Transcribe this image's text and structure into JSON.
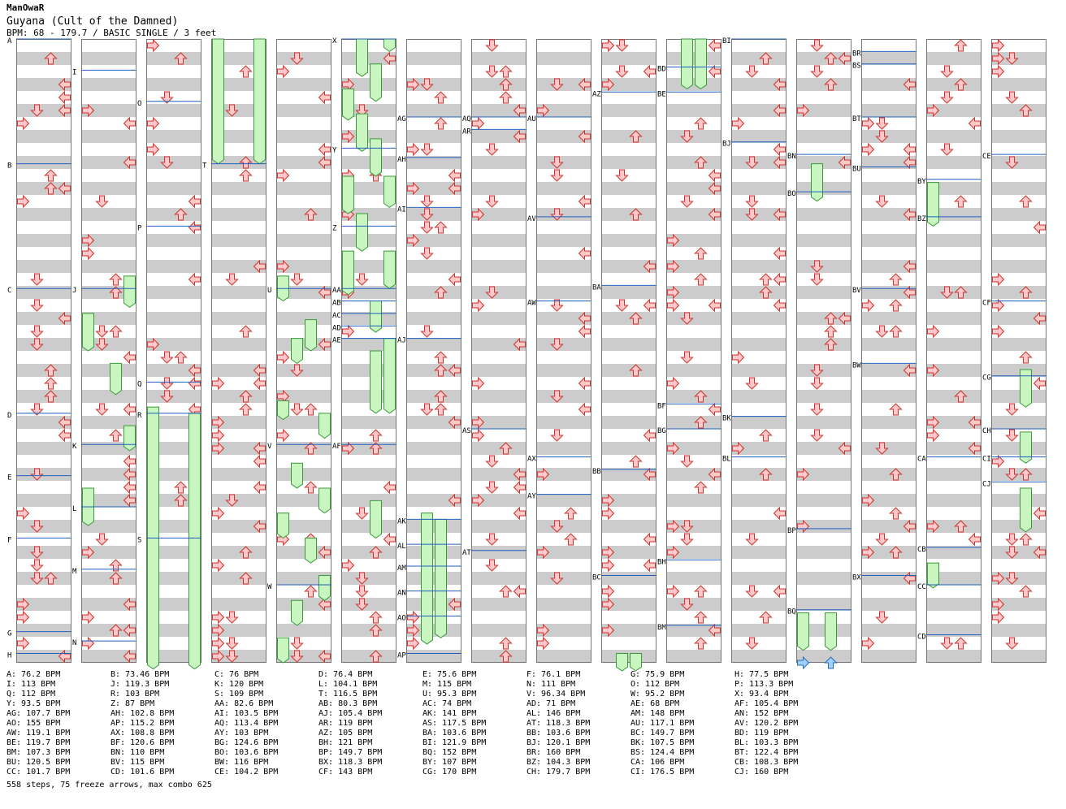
{
  "header": {
    "artist": "ManOwaR",
    "song": "Guyana (Cult of the Damned)",
    "meta": "BPM: 68 - 179.7 / BASIC SINGLE / 3 feet"
  },
  "colors": {
    "stripe": "#cccccc",
    "bpm_line": "#1f5fbf",
    "arrow_fill": "#ffc8c8",
    "arrow_stroke": "#cc3333",
    "freeze_fill": "#c8f5c0",
    "freeze_stroke": "#3a9a3a",
    "shock_fill": "#9ed0ff"
  },
  "markers": [
    {
      "id": "A",
      "col": 0,
      "t": 0.0
    },
    {
      "id": "B",
      "col": 0,
      "t": 0.2
    },
    {
      "id": "C",
      "col": 0,
      "t": 0.4
    },
    {
      "id": "D",
      "col": 0,
      "t": 0.6
    },
    {
      "id": "E",
      "col": 0,
      "t": 0.7
    },
    {
      "id": "F",
      "col": 0,
      "t": 0.8
    },
    {
      "id": "G",
      "col": 0,
      "t": 0.95
    },
    {
      "id": "H",
      "col": 0,
      "t": 0.985
    },
    {
      "id": "I",
      "col": 1,
      "t": 0.05
    },
    {
      "id": "J",
      "col": 1,
      "t": 0.4
    },
    {
      "id": "K",
      "col": 1,
      "t": 0.65
    },
    {
      "id": "L",
      "col": 1,
      "t": 0.75
    },
    {
      "id": "M",
      "col": 1,
      "t": 0.85
    },
    {
      "id": "N",
      "col": 1,
      "t": 0.965
    },
    {
      "id": "O",
      "col": 2,
      "t": 0.1
    },
    {
      "id": "P",
      "col": 2,
      "t": 0.3
    },
    {
      "id": "Q",
      "col": 2,
      "t": 0.55
    },
    {
      "id": "R",
      "col": 2,
      "t": 0.6
    },
    {
      "id": "S",
      "col": 2,
      "t": 0.8
    },
    {
      "id": "T",
      "col": 3,
      "t": 0.2
    },
    {
      "id": "U",
      "col": 4,
      "t": 0.4
    },
    {
      "id": "V",
      "col": 4,
      "t": 0.65
    },
    {
      "id": "W",
      "col": 4,
      "t": 0.875
    },
    {
      "id": "X",
      "col": 5,
      "t": 0.0
    },
    {
      "id": "Y",
      "col": 5,
      "t": 0.175
    },
    {
      "id": "Z",
      "col": 5,
      "t": 0.3
    },
    {
      "id": "AA",
      "col": 5,
      "t": 0.4
    },
    {
      "id": "AB",
      "col": 5,
      "t": 0.42
    },
    {
      "id": "AC",
      "col": 5,
      "t": 0.44
    },
    {
      "id": "AD",
      "col": 5,
      "t": 0.46
    },
    {
      "id": "AE",
      "col": 5,
      "t": 0.48
    },
    {
      "id": "AF",
      "col": 5,
      "t": 0.65
    },
    {
      "id": "AG",
      "col": 6,
      "t": 0.125
    },
    {
      "id": "AH",
      "col": 6,
      "t": 0.19
    },
    {
      "id": "AI",
      "col": 6,
      "t": 0.27
    },
    {
      "id": "AJ",
      "col": 6,
      "t": 0.48
    },
    {
      "id": "AK",
      "col": 6,
      "t": 0.77
    },
    {
      "id": "AL",
      "col": 6,
      "t": 0.81
    },
    {
      "id": "AM",
      "col": 6,
      "t": 0.845
    },
    {
      "id": "AN",
      "col": 6,
      "t": 0.885
    },
    {
      "id": "AO",
      "col": 6,
      "t": 0.925
    },
    {
      "id": "AP",
      "col": 6,
      "t": 0.985
    },
    {
      "id": "AQ",
      "col": 7,
      "t": 0.125
    },
    {
      "id": "AR",
      "col": 7,
      "t": 0.145
    },
    {
      "id": "AS",
      "col": 7,
      "t": 0.625
    },
    {
      "id": "AT",
      "col": 7,
      "t": 0.82
    },
    {
      "id": "AU",
      "col": 8,
      "t": 0.125
    },
    {
      "id": "AV",
      "col": 8,
      "t": 0.285
    },
    {
      "id": "AW",
      "col": 8,
      "t": 0.42
    },
    {
      "id": "AX",
      "col": 8,
      "t": 0.67
    },
    {
      "id": "AY",
      "col": 8,
      "t": 0.73
    },
    {
      "id": "AZ",
      "col": 9,
      "t": 0.085
    },
    {
      "id": "BA",
      "col": 9,
      "t": 0.395
    },
    {
      "id": "BB",
      "col": 9,
      "t": 0.69
    },
    {
      "id": "BC",
      "col": 9,
      "t": 0.86
    },
    {
      "id": "BD",
      "col": 10,
      "t": 0.045
    },
    {
      "id": "BE",
      "col": 10,
      "t": 0.085
    },
    {
      "id": "BF",
      "col": 10,
      "t": 0.585
    },
    {
      "id": "BG",
      "col": 10,
      "t": 0.625
    },
    {
      "id": "BH",
      "col": 10,
      "t": 0.835
    },
    {
      "id": "BM",
      "col": 10,
      "t": 0.94
    },
    {
      "id": "BI",
      "col": 11,
      "t": 0.0
    },
    {
      "id": "BJ",
      "col": 11,
      "t": 0.165
    },
    {
      "id": "BK",
      "col": 11,
      "t": 0.605
    },
    {
      "id": "BL",
      "col": 11,
      "t": 0.67
    },
    {
      "id": "BN",
      "col": 12,
      "t": 0.185
    },
    {
      "id": "BO",
      "col": 12,
      "t": 0.245
    },
    {
      "id": "BP",
      "col": 12,
      "t": 0.785
    },
    {
      "id": "BQ",
      "col": 12,
      "t": 0.915
    },
    {
      "id": "BR",
      "col": 13,
      "t": 0.02
    },
    {
      "id": "BS",
      "col": 13,
      "t": 0.04
    },
    {
      "id": "BT",
      "col": 13,
      "t": 0.125
    },
    {
      "id": "BU",
      "col": 13,
      "t": 0.205
    },
    {
      "id": "BV",
      "col": 13,
      "t": 0.4
    },
    {
      "id": "BW",
      "col": 13,
      "t": 0.52
    },
    {
      "id": "BX",
      "col": 13,
      "t": 0.86
    },
    {
      "id": "BY",
      "col": 14,
      "t": 0.225
    },
    {
      "id": "BZ",
      "col": 14,
      "t": 0.285
    },
    {
      "id": "CA",
      "col": 14,
      "t": 0.67
    },
    {
      "id": "CB",
      "col": 14,
      "t": 0.815
    },
    {
      "id": "CC",
      "col": 14,
      "t": 0.875
    },
    {
      "id": "CD",
      "col": 14,
      "t": 0.955
    },
    {
      "id": "CE",
      "col": 15,
      "t": 0.185
    },
    {
      "id": "CF",
      "col": 15,
      "t": 0.42
    },
    {
      "id": "CG",
      "col": 15,
      "t": 0.54
    },
    {
      "id": "CH",
      "col": 15,
      "t": 0.625
    },
    {
      "id": "CI",
      "col": 15,
      "t": 0.67
    },
    {
      "id": "CJ",
      "col": 15,
      "t": 0.71
    }
  ],
  "freezes": [
    {
      "col": 3,
      "lane": 0,
      "t0": 0.0,
      "t1": 0.2
    },
    {
      "col": 3,
      "lane": 3,
      "t0": 0.0,
      "t1": 0.2
    },
    {
      "col": 1,
      "lane": 3,
      "t0": 0.38,
      "t1": 0.43
    },
    {
      "col": 1,
      "lane": 0,
      "t0": 0.44,
      "t1": 0.5
    },
    {
      "col": 1,
      "lane": 2,
      "t0": 0.52,
      "t1": 0.57
    },
    {
      "col": 1,
      "lane": 3,
      "t0": 0.62,
      "t1": 0.66
    },
    {
      "col": 1,
      "lane": 0,
      "t0": 0.72,
      "t1": 0.78
    },
    {
      "col": 2,
      "lane": 0,
      "t0": 0.59,
      "t1": 1.01
    },
    {
      "col": 2,
      "lane": 3,
      "t0": 0.6,
      "t1": 1.01
    },
    {
      "col": 4,
      "lane": 0,
      "t0": 0.38,
      "t1": 0.42
    },
    {
      "col": 4,
      "lane": 1,
      "t0": 0.48,
      "t1": 0.52
    },
    {
      "col": 4,
      "lane": 2,
      "t0": 0.45,
      "t1": 0.5
    },
    {
      "col": 4,
      "lane": 0,
      "t0": 0.58,
      "t1": 0.61
    },
    {
      "col": 4,
      "lane": 3,
      "t0": 0.6,
      "t1": 0.64
    },
    {
      "col": 4,
      "lane": 1,
      "t0": 0.68,
      "t1": 0.72
    },
    {
      "col": 4,
      "lane": 3,
      "t0": 0.72,
      "t1": 0.76
    },
    {
      "col": 4,
      "lane": 0,
      "t0": 0.76,
      "t1": 0.8
    },
    {
      "col": 4,
      "lane": 2,
      "t0": 0.8,
      "t1": 0.84
    },
    {
      "col": 4,
      "lane": 3,
      "t0": 0.86,
      "t1": 0.9
    },
    {
      "col": 4,
      "lane": 1,
      "t0": 0.9,
      "t1": 0.94
    },
    {
      "col": 4,
      "lane": 0,
      "t0": 0.96,
      "t1": 1.0
    },
    {
      "col": 5,
      "lane": 1,
      "t0": 0.0,
      "t1": 0.06
    },
    {
      "col": 5,
      "lane": 2,
      "t0": 0.04,
      "t1": 0.1
    },
    {
      "col": 5,
      "lane": 3,
      "t0": 0.0,
      "t1": 0.02
    },
    {
      "col": 5,
      "lane": 0,
      "t0": 0.08,
      "t1": 0.13
    },
    {
      "col": 5,
      "lane": 1,
      "t0": 0.12,
      "t1": 0.18
    },
    {
      "col": 5,
      "lane": 2,
      "t0": 0.16,
      "t1": 0.22
    },
    {
      "col": 5,
      "lane": 3,
      "t0": 0.22,
      "t1": 0.27
    },
    {
      "col": 5,
      "lane": 0,
      "t0": 0.22,
      "t1": 0.28
    },
    {
      "col": 5,
      "lane": 1,
      "t0": 0.28,
      "t1": 0.34
    },
    {
      "col": 5,
      "lane": 3,
      "t0": 0.34,
      "t1": 0.4
    },
    {
      "col": 5,
      "lane": 0,
      "t0": 0.34,
      "t1": 0.41
    },
    {
      "col": 5,
      "lane": 2,
      "t0": 0.42,
      "t1": 0.47
    },
    {
      "col": 5,
      "lane": 2,
      "t0": 0.5,
      "t1": 0.6
    },
    {
      "col": 5,
      "lane": 3,
      "t0": 0.48,
      "t1": 0.6
    },
    {
      "col": 5,
      "lane": 2,
      "t0": 0.74,
      "t1": 0.8
    },
    {
      "col": 6,
      "lane": 1,
      "t0": 0.76,
      "t1": 0.97
    },
    {
      "col": 6,
      "lane": 2,
      "t0": 0.77,
      "t1": 0.96
    },
    {
      "col": 9,
      "lane": 1,
      "t0": 0.985,
      "t1": 1.02
    },
    {
      "col": 9,
      "lane": 2,
      "t0": 0.985,
      "t1": 1.02
    },
    {
      "col": 10,
      "lane": 1,
      "t0": 0.0,
      "t1": 0.08
    },
    {
      "col": 10,
      "lane": 2,
      "t0": 0.0,
      "t1": 0.08
    },
    {
      "col": 12,
      "lane": 1,
      "t0": 0.2,
      "t1": 0.26
    },
    {
      "col": 12,
      "lane": 0,
      "t0": 0.92,
      "t1": 0.98
    },
    {
      "col": 12,
      "lane": 2,
      "t0": 0.92,
      "t1": 0.98
    },
    {
      "col": 14,
      "lane": 0,
      "t0": 0.23,
      "t1": 0.3
    },
    {
      "col": 14,
      "lane": 0,
      "t0": 0.84,
      "t1": 0.88
    },
    {
      "col": 15,
      "lane": 2,
      "t0": 0.53,
      "t1": 0.59
    },
    {
      "col": 15,
      "lane": 2,
      "t0": 0.63,
      "t1": 0.68
    },
    {
      "col": 15,
      "lane": 2,
      "t0": 0.72,
      "t1": 0.79
    }
  ],
  "shocks": [
    {
      "col": 12,
      "lane": 0,
      "t": 1.0
    },
    {
      "col": 12,
      "lane": 2,
      "t": 1.0
    }
  ],
  "bpm_list": [
    "A: 76.2 BPM",
    "B: 73.46 BPM",
    "C: 76 BPM",
    "D: 76.4 BPM",
    "E: 75.6 BPM",
    "F: 76.1 BPM",
    "G: 75.9 BPM",
    "H: 77.5 BPM",
    "I: 113 BPM",
    "J: 119.3 BPM",
    "K: 120 BPM",
    "L: 104.1 BPM",
    "M: 115 BPM",
    "N: 111 BPM",
    "O: 112 BPM",
    "P: 113.3 BPM",
    "Q: 112 BPM",
    "R: 103 BPM",
    "S: 109 BPM",
    "T: 116.5 BPM",
    "U: 95.3 BPM",
    "V: 96.34 BPM",
    "W: 95.2 BPM",
    "X: 93.4 BPM",
    "Y: 93.5 BPM",
    "Z: 87 BPM",
    "AA: 82.6 BPM",
    "AB: 80.3 BPM",
    "AC: 74 BPM",
    "AD: 71 BPM",
    "AE: 68 BPM",
    "AF: 105.4 BPM",
    "AG: 107.7 BPM",
    "AH: 102.8 BPM",
    "AI: 103.5 BPM",
    "AJ: 105.4 BPM",
    "AK: 141 BPM",
    "AL: 146 BPM",
    "AM: 148 BPM",
    "AN: 152 BPM",
    "AO: 155 BPM",
    "AP: 115.2 BPM",
    "AQ: 113.4 BPM",
    "AR: 119 BPM",
    "AS: 117.5 BPM",
    "AT: 118.3 BPM",
    "AU: 117.1 BPM",
    "AV: 120.2 BPM",
    "AW: 119.1 BPM",
    "AX: 108.8 BPM",
    "AY: 103 BPM",
    "AZ: 105 BPM",
    "BA: 103.6 BPM",
    "BB: 103.6 BPM",
    "BC: 149.7 BPM",
    "BD: 119 BPM",
    "BE: 119.7 BPM",
    "BF: 120.6 BPM",
    "BG: 124.6 BPM",
    "BH: 121 BPM",
    "BI: 121.9 BPM",
    "BJ: 120.1 BPM",
    "BK: 107.5 BPM",
    "BL: 103.3 BPM",
    "BM: 107.3 BPM",
    "BN: 110 BPM",
    "BO: 103.6 BPM",
    "BP: 149.7 BPM",
    "BQ: 152 BPM",
    "BR: 160 BPM",
    "BS: 124.4 BPM",
    "BT: 122.4 BPM",
    "BU: 120.5 BPM",
    "BV: 115 BPM",
    "BW: 116 BPM",
    "BX: 118.3 BPM",
    "BY: 107 BPM",
    "BZ: 104.3 BPM",
    "CA: 106 BPM",
    "CB: 108.3 BPM",
    "CC: 101.7 BPM",
    "CD: 101.6 BPM",
    "CE: 104.2 BPM",
    "CF: 143 BPM",
    "CG: 170 BPM",
    "CH: 179.7 BPM",
    "CI: 176.5 BPM",
    "CJ: 160 BPM"
  ],
  "footer": "558 steps, 75 freeze arrows, max combo 625"
}
